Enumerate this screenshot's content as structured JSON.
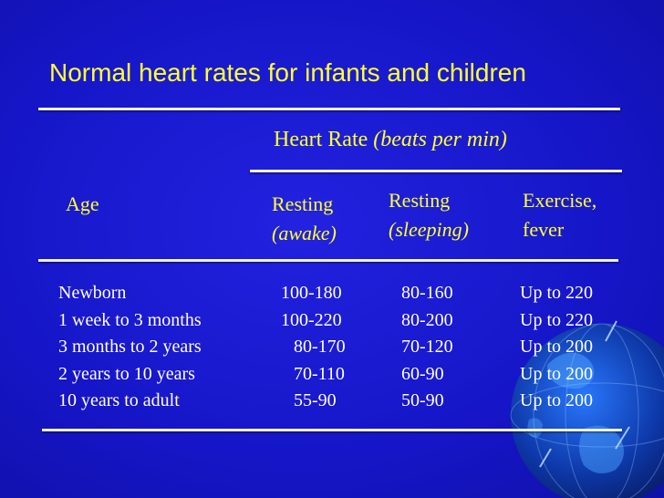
{
  "slide": {
    "title": "Normal heart rates for infants and children",
    "heart_rate_heading": "Heart Rate",
    "heart_rate_units": "(beats per min)",
    "columns": {
      "age": "Age",
      "resting_awake": [
        "Resting",
        "(awake)"
      ],
      "resting_sleeping": [
        "Resting",
        "(sleeping)"
      ],
      "exercise": [
        "Exercise,",
        "fever"
      ]
    },
    "rows": [
      {
        "age": "Newborn",
        "awake": "100-180",
        "sleeping": "80-160",
        "exercise": "Up to 220"
      },
      {
        "age": "1 week to 3 months",
        "awake": "100-220",
        "sleeping": "80-200",
        "exercise": "Up to 220"
      },
      {
        "age": "3 months to 2 years",
        "awake": "80-170",
        "sleeping": "70-120",
        "exercise": "Up to 200"
      },
      {
        "age": "2 years to 10 years",
        "awake": "70-110",
        "sleeping": "60-90",
        "exercise": "Up to 200"
      },
      {
        "age": "10 years to adult",
        "awake": "55-90",
        "sleeping": "50-90",
        "exercise": "Up to 200"
      }
    ]
  },
  "colors": {
    "background": "#1a1ad6",
    "title": "#ffff33",
    "body_text": "#ffffff",
    "rule": "#f2f2ff"
  }
}
